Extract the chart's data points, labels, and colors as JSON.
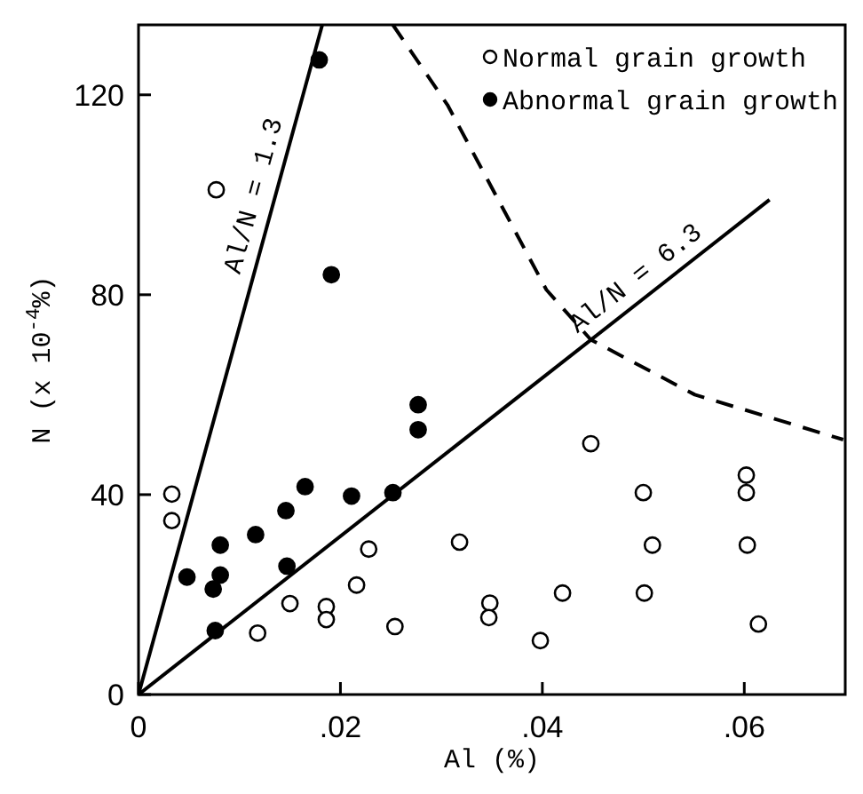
{
  "chart_data": {
    "type": "scatter",
    "xlabel": "Al (%)",
    "ylabel": "N (x 10$^{-4}$%)",
    "xlim": [
      0,
      0.07
    ],
    "ylim": [
      0,
      134
    ],
    "xticks": [
      {
        "value": 0,
        "label": "0"
      },
      {
        "value": 0.02,
        "label": ".02"
      },
      {
        "value": 0.04,
        "label": ".04"
      },
      {
        "value": 0.06,
        "label": ".06"
      }
    ],
    "yticks": [
      0,
      40,
      80,
      120
    ],
    "grid": false,
    "legend": "top right",
    "series": [
      {
        "name": "Normal grain growth",
        "color": "#ffffff",
        "marker": "circle",
        "x": [
          0.0077,
          0.0033,
          0.0033,
          0.0118,
          0.015,
          0.0186,
          0.0186,
          0.0216,
          0.0228,
          0.0254,
          0.0448,
          0.0318,
          0.0348,
          0.0347,
          0.042,
          0.0398,
          0.05,
          0.0509,
          0.0501,
          0.0602,
          0.0602,
          0.0603,
          0.0614
        ],
        "values": [
          101,
          40.1,
          34.8,
          12.3,
          18.2,
          17.6,
          15,
          21.9,
          29.1,
          13.6,
          50.2,
          30.5,
          18.3,
          15.4,
          20.3,
          10.8,
          40.4,
          29.9,
          20.3,
          43.9,
          40.4,
          29.9,
          14.1
        ]
      },
      {
        "name": "Abnormal grain growth",
        "color": "#000000",
        "marker": "circle",
        "x": [
          0.0048,
          0.0074,
          0.0081,
          0.0081,
          0.0076,
          0.0116,
          0.0146,
          0.0147,
          0.0165,
          0.0211,
          0.0252,
          0.0277,
          0.0277,
          0.0179,
          0.0191
        ],
        "values": [
          23.5,
          21.1,
          29.9,
          23.9,
          12.8,
          32,
          36.8,
          25.7,
          41.6,
          39.7,
          40.4,
          58,
          53,
          127,
          84
        ]
      },
      {
        "type": "line",
        "color": "#000000",
        "marker": "none",
        "line_style": "solid",
        "x": [
          0,
          0.0182
        ],
        "values": [
          0,
          134
        ]
      },
      {
        "type": "line",
        "color": "#000000",
        "marker": "none",
        "line_style": "solid",
        "x": [
          0,
          0.0625
        ],
        "values": [
          0,
          99
        ]
      },
      {
        "type": "line",
        "color": "#000000",
        "marker": "none",
        "line_style": "dashed",
        "x": [
          0.0252,
          0.0306,
          0.0404,
          0.0448,
          0.0551,
          0.0698
        ],
        "values": [
          134,
          118,
          81,
          71,
          60,
          51
        ]
      }
    ],
    "annotations": [
      {
        "text": "Al/N = 1.3",
        "x": 0.0134,
        "y": 98.7
      },
      {
        "text": "Al/N = 6.3",
        "x": 0.0505,
        "y": 80
      }
    ]
  }
}
